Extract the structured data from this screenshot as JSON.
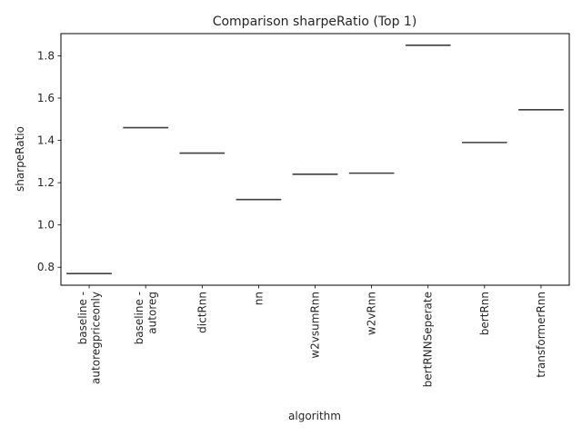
{
  "chart_data": {
    "type": "box",
    "title": "Comparison sharpeRatio (Top 1)",
    "xlabel": "algorithm",
    "ylabel": "sharpeRatio",
    "categories": [
      "baseline -\nautoregpriceonly",
      "baseline -\nautoreg",
      "dictRnn",
      "nn",
      "w2vsumRnn",
      "w2vRnn",
      "bertRNNSeperate",
      "bertRnn",
      "transformerRnn"
    ],
    "values": [
      0.77,
      1.46,
      1.34,
      1.12,
      1.24,
      1.245,
      1.85,
      1.39,
      1.545
    ],
    "ylim": [
      0.715,
      1.905
    ],
    "yticks": [
      0.8,
      1.0,
      1.2,
      1.4,
      1.6,
      1.8
    ],
    "ytick_labels": [
      "0.8",
      "1.0",
      "1.2",
      "1.4",
      "1.6",
      "1.8"
    ],
    "grid": false,
    "legend": "none",
    "line_color": "#3f3f3f"
  }
}
